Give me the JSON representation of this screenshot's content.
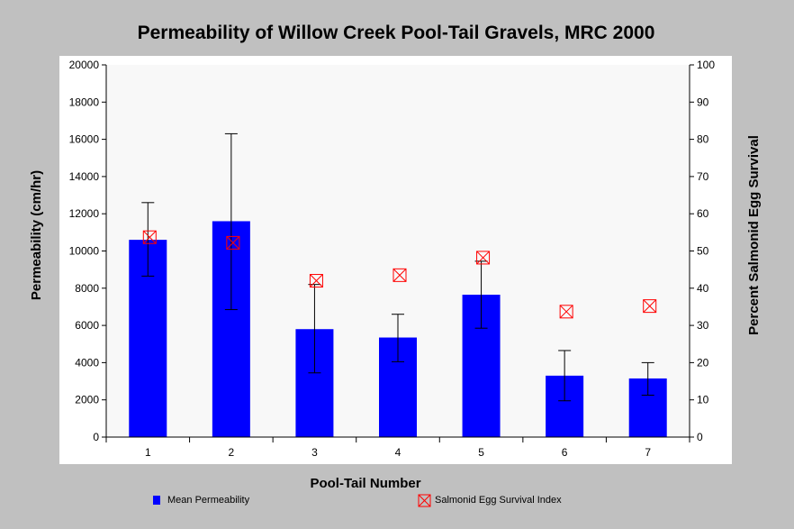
{
  "colors": {
    "background": "#c0c0c0",
    "plot_background": "#f8f8f8",
    "bar": "#0000ff",
    "marker": "#ff0000",
    "error_bar": "#000000"
  },
  "legend": {
    "bar_label": "Mean Permeability",
    "marker_label": "Salmonid Egg Survival Index",
    "marker_icon": "red-boxed-x-icon"
  },
  "chart_data": {
    "type": "bar",
    "title": "Permeability of Willow Creek Pool-Tail Gravels, MRC 2000",
    "xlabel": "Pool-Tail Number",
    "ylabel": "Permeability (cm/hr)",
    "y2label": "Percent Salmonid Egg Survival",
    "categories": [
      "1",
      "2",
      "3",
      "4",
      "5",
      "6",
      "7"
    ],
    "ylim": [
      0,
      20000
    ],
    "y_ticks": [
      0,
      2000,
      4000,
      6000,
      8000,
      10000,
      12000,
      14000,
      16000,
      18000,
      20000
    ],
    "y2lim": [
      0,
      100
    ],
    "y2_ticks": [
      0,
      10,
      20,
      30,
      40,
      50,
      60,
      70,
      80,
      90,
      100
    ],
    "grid": false,
    "legend_position": "bottom",
    "series": [
      {
        "name": "Mean Permeability",
        "type": "bar",
        "axis": "left",
        "values": [
          10600,
          11600,
          5800,
          5350,
          7650,
          3300,
          3150
        ],
        "error_low": [
          8650,
          6850,
          3450,
          4050,
          5850,
          1950,
          2250
        ],
        "error_high": [
          12600,
          16300,
          8200,
          6600,
          9450,
          4650,
          4000
        ]
      },
      {
        "name": "Salmonid Egg Survival Index",
        "type": "scatter",
        "axis": "right",
        "marker": "boxed-x",
        "values": [
          53.7,
          52.2,
          42.0,
          43.5,
          48.2,
          33.7,
          35.2
        ]
      }
    ]
  }
}
